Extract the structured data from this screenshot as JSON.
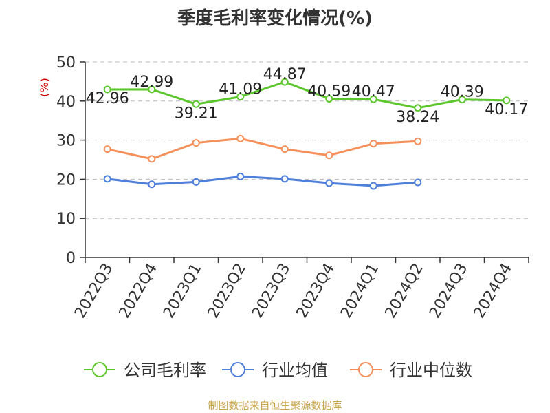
{
  "chart_data": {
    "type": "line",
    "title": "季度毛利率变化情况(%)",
    "ylabel": "(%)",
    "ylim": [
      0,
      50
    ],
    "yticks": [
      0,
      10,
      20,
      30,
      40,
      50
    ],
    "categories": [
      "2022Q3",
      "2022Q4",
      "2023Q1",
      "2023Q2",
      "2023Q3",
      "2023Q4",
      "2024Q1",
      "2024Q2",
      "2024Q3",
      "2024Q4"
    ],
    "grid": "horizontal-dashed",
    "legend_position": "bottom",
    "series": [
      {
        "name": "公司毛利率",
        "color": "#5cc72c",
        "values": [
          42.96,
          42.99,
          39.21,
          41.09,
          44.87,
          40.59,
          40.47,
          38.24,
          40.39,
          40.17
        ],
        "labels": [
          "42.96",
          "42.99",
          "39.21",
          "41.09",
          "44.87",
          "40.59",
          "40.47",
          "38.24",
          "40.39",
          "40.17"
        ]
      },
      {
        "name": "行业均值",
        "color": "#4e7fdb",
        "values": [
          20.1,
          18.7,
          19.3,
          20.7,
          20.1,
          19.0,
          18.3,
          19.2,
          null,
          null
        ]
      },
      {
        "name": "行业中位数",
        "color": "#f5905a",
        "values": [
          27.7,
          25.2,
          29.3,
          30.4,
          27.7,
          26.1,
          29.1,
          29.7,
          null,
          null
        ]
      }
    ],
    "source": "制图数据来自恒生聚源数据库"
  }
}
